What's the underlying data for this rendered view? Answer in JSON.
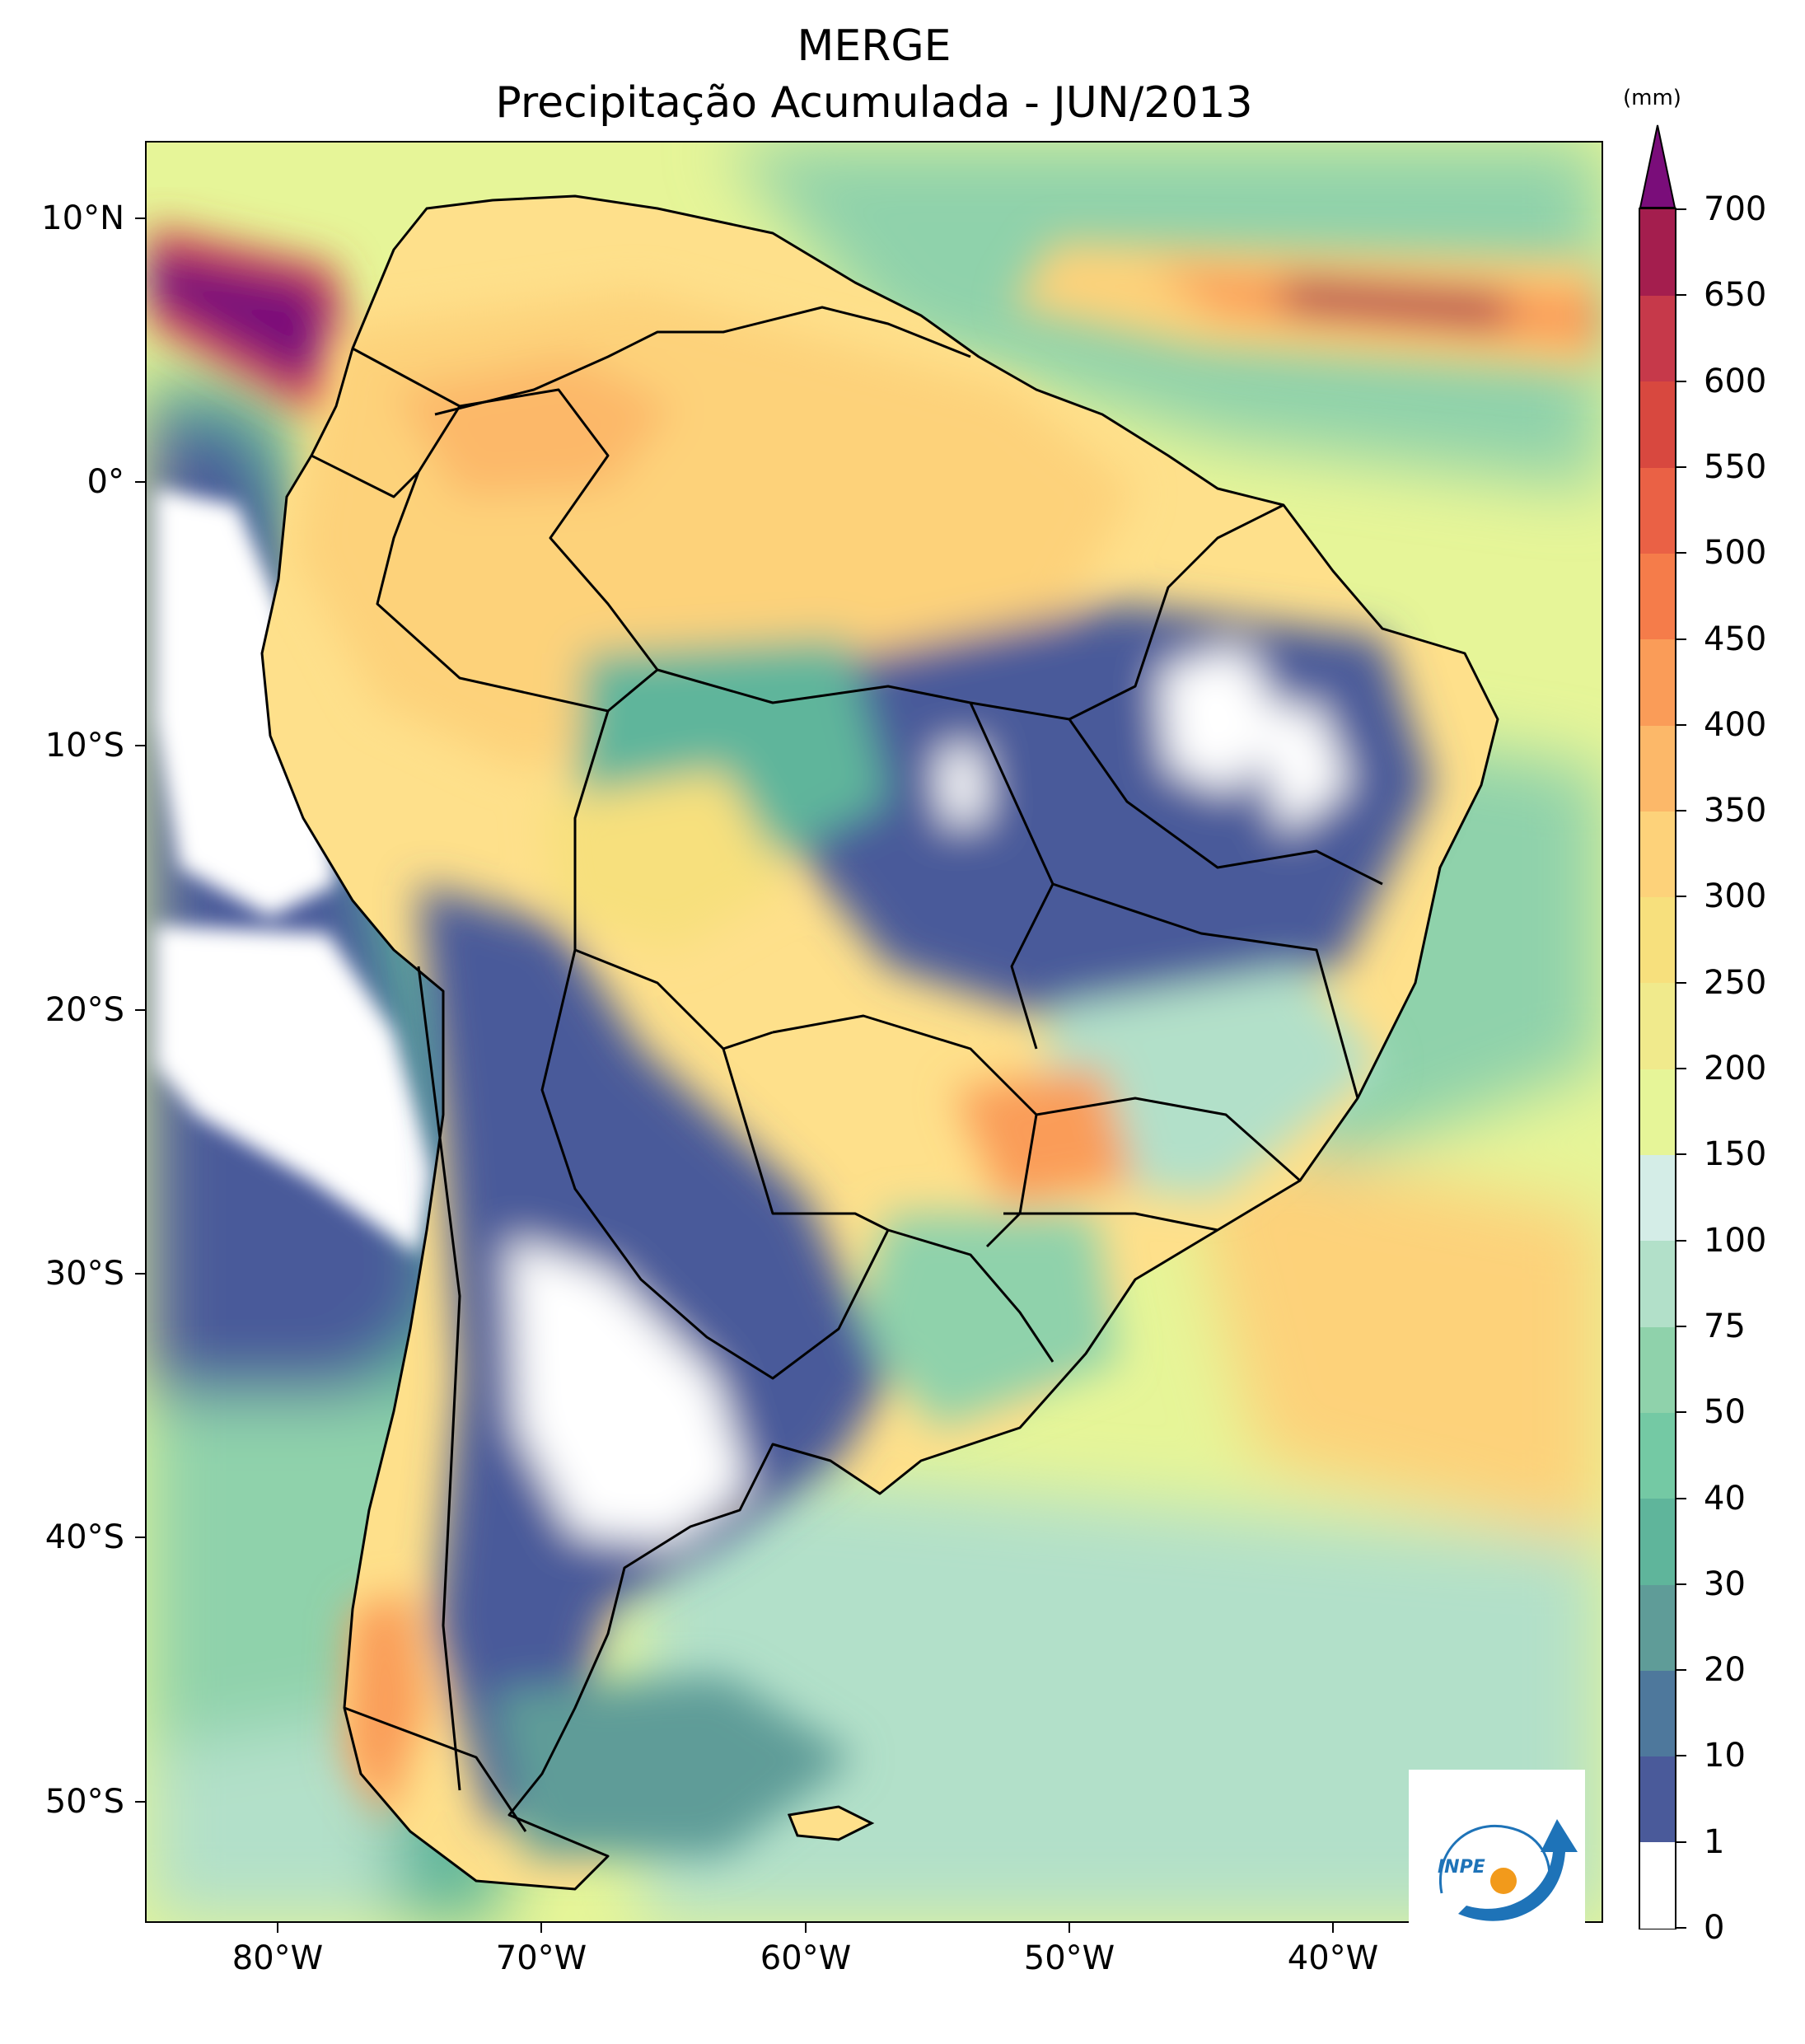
{
  "title": {
    "line1": "MERGE",
    "line2": "Precipitação Acumulada - JUN/2013"
  },
  "map": {
    "region": "South America",
    "ocean_color": "#e6f598",
    "land_base_color": "#fee08b",
    "border_color": "#000000"
  },
  "axes": {
    "lat_labels": [
      "10°N",
      "0°",
      "10°S",
      "20°S",
      "30°S",
      "40°S",
      "50°S"
    ],
    "lon_labels": [
      "80°W",
      "70°W",
      "60°W",
      "50°W",
      "40°W"
    ]
  },
  "colorbar": {
    "unit": "(mm)",
    "labels": [
      "0",
      "1",
      "10",
      "20",
      "30",
      "40",
      "50",
      "75",
      "100",
      "150",
      "200",
      "250",
      "300",
      "350",
      "400",
      "450",
      "500",
      "550",
      "600",
      "650",
      "700"
    ],
    "colors": [
      "#ffffff",
      "#4a5a9a",
      "#4e789c",
      "#5f9c98",
      "#5fb59b",
      "#74c9a4",
      "#8fd2ab",
      "#b2e0c9",
      "#d4ede7",
      "#e6f598",
      "#f0ea8c",
      "#f7e07d",
      "#fdd27a",
      "#fcb869",
      "#fa9c58",
      "#f57c4a",
      "#ea6145",
      "#d8483f",
      "#c6394a",
      "#a41e4e"
    ],
    "extend_color": "#7a0d7a"
  },
  "logo": {
    "text": "INPE",
    "primary_color": "#1e73b8",
    "accent_color": "#f29a1b"
  }
}
